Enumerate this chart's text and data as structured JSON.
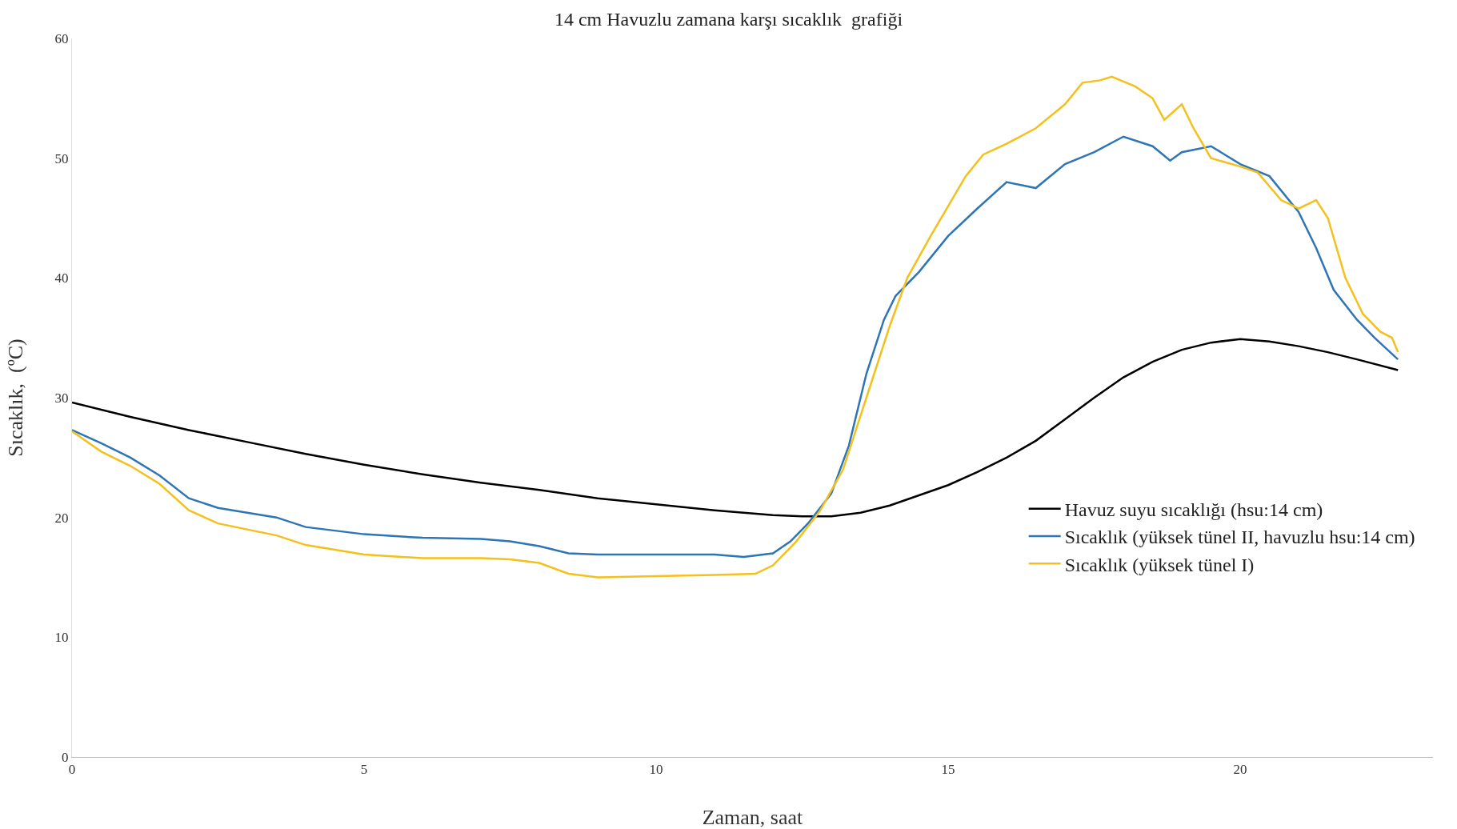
{
  "chart_data": {
    "type": "line",
    "title": "14 cm Havuzlu zamana karşı sıcaklık  grafiği",
    "xlabel": "Zaman, saat",
    "ylabel": "Sıcaklık,  (ºC)",
    "xlim": [
      0,
      23.3
    ],
    "ylim": [
      0,
      60
    ],
    "xticks": [
      0,
      5,
      10,
      15,
      20
    ],
    "yticks": [
      0,
      10,
      20,
      30,
      40,
      50,
      60
    ],
    "grid": false,
    "legend": "right",
    "marker": "none",
    "line_style": "solid",
    "series": [
      {
        "name": "Havuz suyu sıcaklığı (hsu:14 cm)",
        "color": "#000000",
        "x": [
          0,
          1,
          2,
          3,
          4,
          5,
          6,
          7,
          8,
          9,
          10,
          11,
          12,
          12.5,
          13,
          13.5,
          14,
          15,
          15.5,
          16,
          16.5,
          17,
          17.5,
          18,
          18.5,
          19,
          19.5,
          20,
          20.5,
          21,
          21.5,
          22,
          22.7
        ],
        "values": [
          29.6,
          28.4,
          27.3,
          26.3,
          25.3,
          24.4,
          23.6,
          22.9,
          22.3,
          21.6,
          21.1,
          20.6,
          20.2,
          20.1,
          20.1,
          20.4,
          21,
          22.7,
          23.8,
          25,
          26.4,
          28.2,
          30,
          31.7,
          33,
          34,
          34.6,
          34.9,
          34.7,
          34.3,
          33.8,
          33.2,
          32.3
        ]
      },
      {
        "name": "Sıcaklık (yüksek tünel II, havuzlu hsu:14 cm)",
        "color": "#2e75b6",
        "x": [
          0,
          0.5,
          1,
          1.5,
          2,
          2.5,
          3,
          3.5,
          4,
          4.5,
          5,
          6,
          7,
          7.5,
          8,
          8.5,
          9,
          10,
          11,
          11.5,
          12,
          12.3,
          12.6,
          13,
          13.3,
          13.6,
          13.9,
          14.1,
          14.5,
          15,
          15.5,
          16,
          16.5,
          17,
          17.5,
          18,
          18.5,
          18.8,
          19,
          19.5,
          20,
          20.5,
          21,
          21.3,
          21.6,
          22,
          22.3,
          22.7
        ],
        "values": [
          27.3,
          26.2,
          25,
          23.5,
          21.6,
          20.8,
          20.4,
          20,
          19.2,
          18.9,
          18.6,
          18.3,
          18.2,
          18,
          17.6,
          17,
          16.9,
          16.9,
          16.9,
          16.7,
          17,
          18,
          19.5,
          22,
          26,
          32,
          36.5,
          38.5,
          40.5,
          43.5,
          45.8,
          48,
          47.5,
          49.5,
          50.5,
          51.8,
          51,
          49.8,
          50.5,
          51,
          49.5,
          48.5,
          45.5,
          42.5,
          39,
          36.5,
          35,
          33.2
        ]
      },
      {
        "name": "Sıcaklık (yüksek tünel I)",
        "color": "#f4c01b",
        "x": [
          0,
          0.5,
          1,
          1.5,
          2,
          2.5,
          3,
          3.5,
          4,
          4.5,
          5,
          6,
          7,
          7.5,
          8,
          8.5,
          9,
          10,
          11,
          11.7,
          12,
          12.4,
          12.8,
          13.2,
          13.6,
          14,
          14.3,
          14.7,
          15,
          15.3,
          15.6,
          16,
          16.5,
          17,
          17.3,
          17.6,
          17.8,
          18.2,
          18.5,
          18.7,
          19,
          19.2,
          19.5,
          20,
          20.3,
          20.7,
          21,
          21.3,
          21.5,
          21.8,
          22.1,
          22.4,
          22.6,
          22.7
        ],
        "values": [
          27.2,
          25.5,
          24.3,
          22.8,
          20.6,
          19.5,
          19,
          18.5,
          17.7,
          17.3,
          16.9,
          16.6,
          16.6,
          16.5,
          16.2,
          15.3,
          15,
          15.1,
          15.2,
          15.3,
          16,
          18,
          20.5,
          24,
          30,
          36,
          40,
          43.5,
          46,
          48.5,
          50.3,
          51.2,
          52.5,
          54.5,
          56.3,
          56.5,
          56.8,
          56,
          55,
          53.2,
          54.5,
          52.5,
          50,
          49.3,
          48.8,
          46.5,
          45.8,
          46.5,
          45,
          40,
          37,
          35.5,
          35,
          33.8
        ]
      }
    ]
  }
}
